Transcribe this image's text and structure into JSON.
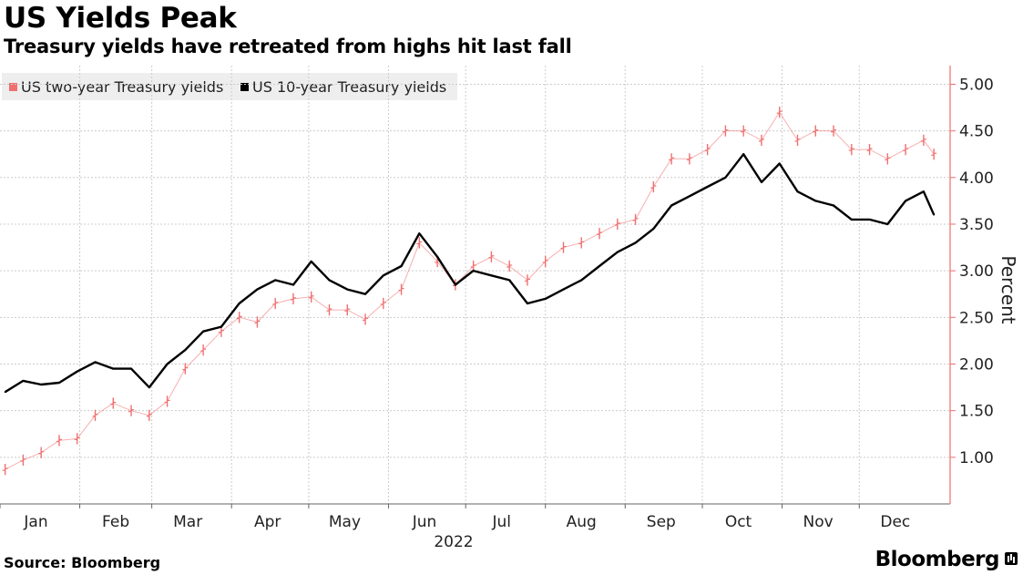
{
  "header": {
    "title": "US Yields Peak",
    "subtitle": "Treasury yields have retreated from highs hit last fall"
  },
  "footer": {
    "source": "Source: Bloomberg",
    "brand": "Bloomberg"
  },
  "colors": {
    "two_year": "#f07070",
    "ten_year": "#000000",
    "axis": "#e87070",
    "grid": "#cccccc",
    "legend_bg": "#eeeeee"
  },
  "chart_data": {
    "type": "line",
    "title": "US Yields Peak",
    "subtitle": "Treasury yields have retreated from highs hit last fall",
    "xlabel": "2022",
    "ylabel": "Percent",
    "ylim": [
      0.5,
      5.2
    ],
    "xlim": [
      "2022-01-01",
      "2022-12-31"
    ],
    "y_ticks": [
      "1.00",
      "1.50",
      "2.00",
      "2.50",
      "3.00",
      "3.50",
      "4.00",
      "4.50",
      "5.00"
    ],
    "x_ticks": [
      "Jan",
      "Feb",
      "Mar",
      "Apr",
      "May",
      "Jun",
      "Jul",
      "Aug",
      "Sep",
      "Oct",
      "Nov",
      "Dec"
    ],
    "x_sublabel": "2022",
    "grid": true,
    "legend_position": "top-left",
    "y_axis_side": "right",
    "series": [
      {
        "name": "US two-year Treasury yields",
        "style": "ohlc-bars",
        "x": [
          "2022-01-03",
          "2022-01-10",
          "2022-01-17",
          "2022-01-24",
          "2022-01-31",
          "2022-02-07",
          "2022-02-14",
          "2022-02-21",
          "2022-02-28",
          "2022-03-07",
          "2022-03-14",
          "2022-03-21",
          "2022-03-28",
          "2022-04-04",
          "2022-04-11",
          "2022-04-18",
          "2022-04-25",
          "2022-05-02",
          "2022-05-09",
          "2022-05-16",
          "2022-05-23",
          "2022-05-30",
          "2022-06-06",
          "2022-06-13",
          "2022-06-20",
          "2022-06-27",
          "2022-07-04",
          "2022-07-11",
          "2022-07-18",
          "2022-07-25",
          "2022-08-01",
          "2022-08-08",
          "2022-08-15",
          "2022-08-22",
          "2022-08-29",
          "2022-09-05",
          "2022-09-12",
          "2022-09-19",
          "2022-09-26",
          "2022-10-03",
          "2022-10-10",
          "2022-10-17",
          "2022-10-24",
          "2022-10-31",
          "2022-11-07",
          "2022-11-14",
          "2022-11-21",
          "2022-11-28",
          "2022-12-05",
          "2022-12-12",
          "2022-12-19",
          "2022-12-26",
          "2022-12-30"
        ],
        "values": [
          0.87,
          0.97,
          1.05,
          1.18,
          1.2,
          1.45,
          1.58,
          1.5,
          1.45,
          1.6,
          1.95,
          2.15,
          2.35,
          2.5,
          2.45,
          2.65,
          2.7,
          2.72,
          2.58,
          2.58,
          2.48,
          2.65,
          2.8,
          3.3,
          3.1,
          2.85,
          3.05,
          3.15,
          3.05,
          2.9,
          3.1,
          3.25,
          3.3,
          3.4,
          3.5,
          3.55,
          3.9,
          4.2,
          4.2,
          4.3,
          4.5,
          4.5,
          4.4,
          4.7,
          4.4,
          4.5,
          4.5,
          4.3,
          4.3,
          4.2,
          4.3,
          4.4,
          4.25
        ]
      },
      {
        "name": "US 10-year Treasury yields",
        "style": "line",
        "x": [
          "2022-01-03",
          "2022-01-10",
          "2022-01-17",
          "2022-01-24",
          "2022-01-31",
          "2022-02-07",
          "2022-02-14",
          "2022-02-21",
          "2022-02-28",
          "2022-03-07",
          "2022-03-14",
          "2022-03-21",
          "2022-03-28",
          "2022-04-04",
          "2022-04-11",
          "2022-04-18",
          "2022-04-25",
          "2022-05-02",
          "2022-05-09",
          "2022-05-16",
          "2022-05-23",
          "2022-05-30",
          "2022-06-06",
          "2022-06-13",
          "2022-06-20",
          "2022-06-27",
          "2022-07-04",
          "2022-07-11",
          "2022-07-18",
          "2022-07-25",
          "2022-08-01",
          "2022-08-08",
          "2022-08-15",
          "2022-08-22",
          "2022-08-29",
          "2022-09-05",
          "2022-09-12",
          "2022-09-19",
          "2022-09-26",
          "2022-10-03",
          "2022-10-10",
          "2022-10-17",
          "2022-10-24",
          "2022-10-31",
          "2022-11-07",
          "2022-11-14",
          "2022-11-21",
          "2022-11-28",
          "2022-12-05",
          "2022-12-12",
          "2022-12-19",
          "2022-12-26",
          "2022-12-30"
        ],
        "values": [
          1.7,
          1.82,
          1.78,
          1.8,
          1.92,
          2.02,
          1.95,
          1.95,
          1.75,
          2.0,
          2.15,
          2.35,
          2.4,
          2.65,
          2.8,
          2.9,
          2.85,
          3.1,
          2.9,
          2.8,
          2.75,
          2.95,
          3.05,
          3.4,
          3.15,
          2.85,
          3.0,
          2.95,
          2.9,
          2.65,
          2.7,
          2.8,
          2.9,
          3.05,
          3.2,
          3.3,
          3.45,
          3.7,
          3.8,
          3.9,
          4.0,
          4.25,
          3.95,
          4.15,
          3.85,
          3.75,
          3.7,
          3.55,
          3.55,
          3.5,
          3.75,
          3.85,
          3.6
        ]
      }
    ]
  }
}
